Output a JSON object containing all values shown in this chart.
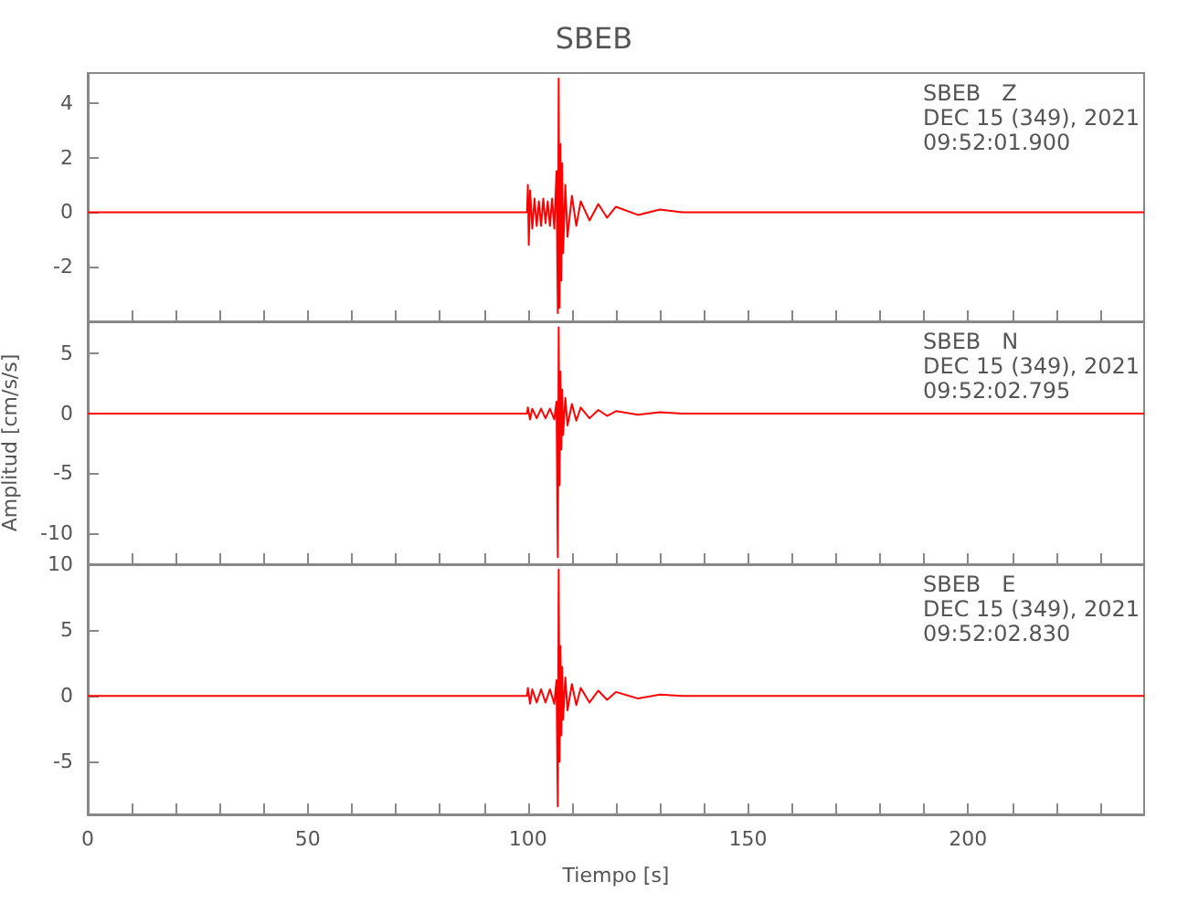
{
  "chart_data": [
    {
      "type": "line",
      "title": "SBEB",
      "annotations": [
        "SBEB   Z\nDEC 15 (349), 2021\n09:52:01.900"
      ],
      "tick_labels": "y",
      "marker": "none",
      "grid": false,
      "x": [
        0,
        50,
        99.8,
        100,
        100.2,
        100.5,
        101,
        101.5,
        102,
        102.5,
        103,
        103.5,
        104,
        104.5,
        105,
        105.5,
        106,
        106.5,
        106.8,
        107,
        107.2,
        107.4,
        107.6,
        107.8,
        108,
        108.5,
        109,
        110,
        111,
        112,
        114,
        116,
        118,
        120,
        125,
        130,
        135,
        240
      ],
      "series": [
        {
          "color": "#ff0000",
          "values": [
            0,
            0,
            0,
            1.0,
            -1.2,
            0.8,
            -0.6,
            0.5,
            -0.5,
            0.4,
            -0.5,
            0.5,
            -0.4,
            0.4,
            -0.5,
            0.5,
            -0.6,
            1.5,
            -3.7,
            4.9,
            -3.5,
            2.5,
            -2.5,
            1.8,
            -1.5,
            1.0,
            -0.9,
            0.6,
            -0.5,
            0.4,
            -0.3,
            0.3,
            -0.2,
            0.2,
            -0.1,
            0.1,
            0,
            0
          ]
        }
      ],
      "xlim": [
        0,
        240
      ],
      "xticks": [
        0,
        {
          "value": 10,
          "label": null
        },
        {
          "value": 20,
          "label": null
        },
        {
          "value": 30,
          "label": null
        },
        {
          "value": 40,
          "label": null
        },
        50,
        {
          "value": 60,
          "label": null
        },
        {
          "value": 70,
          "label": null
        },
        {
          "value": 80,
          "label": null
        },
        {
          "value": 90,
          "label": null
        },
        100,
        {
          "value": 110,
          "label": null
        },
        {
          "value": 120,
          "label": null
        },
        {
          "value": 130,
          "label": null
        },
        {
          "value": 140,
          "label": null
        },
        150,
        {
          "value": 160,
          "label": null
        },
        {
          "value": 170,
          "label": null
        },
        {
          "value": 180,
          "label": null
        },
        {
          "value": 190,
          "label": null
        },
        200,
        {
          "value": 210,
          "label": null
        },
        {
          "value": 220,
          "label": null
        },
        {
          "value": 230,
          "label": null
        }
      ],
      "ylim": [
        -4,
        5.1
      ],
      "yticks": [
        -2,
        0,
        2,
        4
      ]
    },
    {
      "type": "line",
      "ylabel": "Amplitud [cm/s/s]",
      "annotations": [
        "SBEB   N\nDEC 15 (349), 2021\n09:52:02.795"
      ],
      "tick_labels": "y",
      "marker": "none",
      "grid": false,
      "x": [
        0,
        99.8,
        100,
        100.5,
        101,
        102,
        103,
        104,
        105,
        106,
        106.5,
        106.8,
        107,
        107.2,
        107.4,
        107.6,
        107.8,
        108,
        108.5,
        109,
        110,
        111,
        112,
        114,
        116,
        118,
        120,
        125,
        130,
        135,
        240
      ],
      "series": [
        {
          "color": "#ff0000",
          "values": [
            0,
            0,
            0.5,
            -0.5,
            0.4,
            -0.4,
            0.4,
            -0.4,
            0.4,
            -0.5,
            1.0,
            -12,
            7.2,
            -6,
            3.5,
            -3,
            2,
            -1.8,
            1.3,
            -1.0,
            0.8,
            -0.6,
            0.5,
            -0.4,
            0.3,
            -0.2,
            0.2,
            -0.1,
            0.1,
            0,
            0
          ]
        }
      ],
      "xlim": [
        0,
        240
      ],
      "xticks": [
        0,
        {
          "value": 10,
          "label": null
        },
        {
          "value": 20,
          "label": null
        },
        {
          "value": 30,
          "label": null
        },
        {
          "value": 40,
          "label": null
        },
        50,
        {
          "value": 60,
          "label": null
        },
        {
          "value": 70,
          "label": null
        },
        {
          "value": 80,
          "label": null
        },
        {
          "value": 90,
          "label": null
        },
        100,
        {
          "value": 110,
          "label": null
        },
        {
          "value": 120,
          "label": null
        },
        {
          "value": 130,
          "label": null
        },
        {
          "value": 140,
          "label": null
        },
        150,
        {
          "value": 160,
          "label": null
        },
        {
          "value": 170,
          "label": null
        },
        {
          "value": 180,
          "label": null
        },
        {
          "value": 190,
          "label": null
        },
        200,
        {
          "value": 210,
          "label": null
        },
        {
          "value": 220,
          "label": null
        },
        {
          "value": 230,
          "label": null
        }
      ],
      "ylim": [
        -12.6,
        7.7
      ],
      "yticks": [
        -10,
        -5,
        0,
        5
      ]
    },
    {
      "type": "line",
      "xlabel": "Tiempo [s]",
      "annotations": [
        "SBEB   E\nDEC 15 (349), 2021\n09:52:02.830"
      ],
      "marker": "none",
      "grid": false,
      "x": [
        0,
        99.8,
        100,
        100.5,
        101,
        102,
        103,
        104,
        105,
        106,
        106.5,
        106.8,
        107,
        107.2,
        107.4,
        107.6,
        107.8,
        108,
        108.5,
        109,
        110,
        111,
        112,
        114,
        116,
        118,
        120,
        125,
        130,
        135,
        240
      ],
      "series": [
        {
          "color": "#ff0000",
          "values": [
            0,
            0,
            0.6,
            -0.6,
            0.5,
            -0.5,
            0.5,
            -0.5,
            0.5,
            -0.6,
            1.2,
            -8.4,
            9.6,
            -5,
            3.8,
            -3,
            2.2,
            -1.8,
            1.4,
            -1.1,
            0.9,
            -0.7,
            0.6,
            -0.5,
            0.4,
            -0.3,
            0.3,
            -0.2,
            0.1,
            0,
            0
          ]
        }
      ],
      "xlim": [
        0,
        240
      ],
      "xticks": [
        0,
        {
          "value": 10,
          "label": null
        },
        {
          "value": 20,
          "label": null
        },
        {
          "value": 30,
          "label": null
        },
        {
          "value": 40,
          "label": null
        },
        50,
        {
          "value": 60,
          "label": null
        },
        {
          "value": 70,
          "label": null
        },
        {
          "value": 80,
          "label": null
        },
        {
          "value": 90,
          "label": null
        },
        100,
        {
          "value": 110,
          "label": null
        },
        {
          "value": 120,
          "label": null
        },
        {
          "value": 130,
          "label": null
        },
        {
          "value": 140,
          "label": null
        },
        150,
        {
          "value": 160,
          "label": null
        },
        {
          "value": 170,
          "label": null
        },
        {
          "value": 180,
          "label": null
        },
        {
          "value": 190,
          "label": null
        },
        200,
        {
          "value": 210,
          "label": null
        },
        {
          "value": 220,
          "label": null
        },
        {
          "value": 230,
          "label": null
        }
      ],
      "ylim": [
        -9,
        10
      ],
      "yticks": [
        -5,
        0,
        5,
        10
      ]
    }
  ]
}
